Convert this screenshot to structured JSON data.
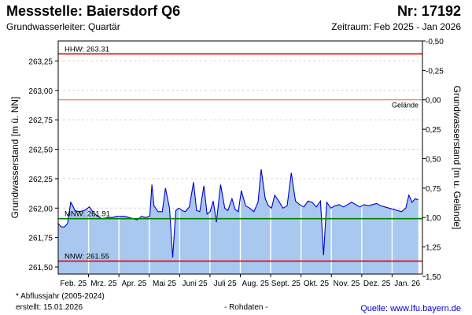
{
  "header": {
    "title": "Messstelle: Baiersdorf Q6",
    "number": "Nr: 17192",
    "aquifer": "Grundwasserleiter: Quartär",
    "period": "Zeitraum: Feb 2025 - Jan 2026"
  },
  "footer": {
    "note": "* Abflussjahr (2005-2024)",
    "created": "erstellt:  15.01.2026",
    "raw": "- Rohdaten -",
    "source": "Quelle: www.lfu.bayern.de"
  },
  "colors": {
    "fill": "#a9c8ef",
    "line": "#0000cc",
    "hhw": "#e00000",
    "nnw": "#e00000",
    "mnw": "#008000",
    "gelaende": "#e07030"
  },
  "chart_data": {
    "type": "area",
    "ylabel": "Grundwasserstand [m ü. NN]",
    "y2label": "Grundwasserstand [m u. Gelände]",
    "ylim": [
      261.44,
      263.42
    ],
    "yticks": [
      "263,25",
      "263,00",
      "262,75",
      "262,50",
      "262,25",
      "262,00",
      "261,75",
      "261,50"
    ],
    "ytick_values": [
      263.25,
      263.0,
      262.75,
      262.5,
      262.25,
      262.0,
      261.75,
      261.5
    ],
    "y2ticks": [
      "-0,50",
      "-0,25",
      "0,00",
      "0,25",
      "0,50",
      "0,75",
      "1,00",
      "1,25",
      "1,50"
    ],
    "y2tick_values": [
      -0.5,
      -0.25,
      0.0,
      0.25,
      0.5,
      0.75,
      1.0,
      1.25,
      1.5
    ],
    "gelaende_level": 262.92,
    "months": [
      "Feb. 25",
      "Mrz. 25",
      "Apr. 25",
      "Mai 25",
      "Juni 25",
      "Juli 25",
      "Aug. 25",
      "Sept. 25",
      "Okt. 25",
      "Nov. 25",
      "Dez. 25",
      "Jan. 26"
    ],
    "xlim": [
      0,
      350
    ],
    "reference_lines": [
      {
        "key": "hhw",
        "label": "HHW: 263.31",
        "value": 263.31
      },
      {
        "key": "mnw",
        "label": "MNW: 261.91",
        "value": 261.91
      },
      {
        "key": "nnw",
        "label": "NNW: 261.55",
        "value": 261.55
      },
      {
        "key": "gelaende",
        "label": "Gelände",
        "value": 262.92
      }
    ],
    "x": [
      0,
      3,
      6,
      9,
      12,
      14,
      16,
      20,
      25,
      30,
      34,
      38,
      42,
      48,
      52,
      56,
      60,
      64,
      68,
      72,
      76,
      80,
      84,
      88,
      90,
      92,
      96,
      100,
      103,
      107,
      110,
      113,
      116,
      119,
      122,
      126,
      130,
      133,
      136,
      140,
      143,
      146,
      149,
      152,
      156,
      160,
      163,
      167,
      170,
      173,
      176,
      180,
      184,
      188,
      192,
      195,
      199,
      202,
      205,
      208,
      212,
      216,
      220,
      224,
      228,
      232,
      236,
      240,
      244,
      248,
      252,
      255,
      258,
      262,
      266,
      270,
      274,
      278,
      282,
      286,
      290,
      294,
      298,
      302,
      306,
      310,
      314,
      318,
      322,
      326,
      330,
      334,
      337,
      340,
      343,
      346
    ],
    "values": [
      261.87,
      261.84,
      261.84,
      261.87,
      262.05,
      262.02,
      261.98,
      261.97,
      261.98,
      262.01,
      261.96,
      261.93,
      261.91,
      261.92,
      261.92,
      261.93,
      261.93,
      261.93,
      261.92,
      261.91,
      261.9,
      261.93,
      261.92,
      261.93,
      262.2,
      262.02,
      261.97,
      261.97,
      262.17,
      262.0,
      261.58,
      261.98,
      262.0,
      261.98,
      261.97,
      262.01,
      262.22,
      261.98,
      261.97,
      262.19,
      261.95,
      261.97,
      262.06,
      261.88,
      262.2,
      262.0,
      261.98,
      262.08,
      261.99,
      261.97,
      262.15,
      262.02,
      262.0,
      261.97,
      262.05,
      262.33,
      262.08,
      262.02,
      262.0,
      262.11,
      262.06,
      262.0,
      262.02,
      262.3,
      262.06,
      262.03,
      262.01,
      262.06,
      262.05,
      262.01,
      262.06,
      261.6,
      262.05,
      262.0,
      262.02,
      262.03,
      262.01,
      262.03,
      262.05,
      262.03,
      262.01,
      262.03,
      262.02,
      262.03,
      262.04,
      262.02,
      262.01,
      262.0,
      261.99,
      261.98,
      261.97,
      262.0,
      262.11,
      262.05,
      262.08,
      262.07
    ]
  }
}
